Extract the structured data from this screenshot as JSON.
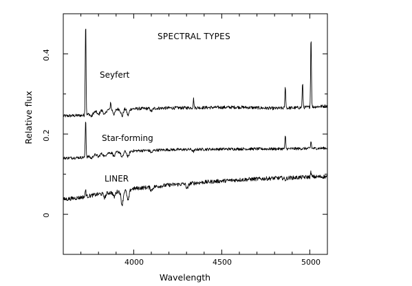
{
  "chart_data": {
    "type": "line",
    "title": "SPECTRAL TYPES",
    "xlabel": "Wavelength",
    "ylabel": "Relative flux",
    "xlim": [
      3600,
      5100
    ],
    "ylim": [
      -0.1,
      0.5
    ],
    "x_ticks": [
      4000,
      4500,
      5000
    ],
    "x_tick_labels": [
      "4000",
      "4500",
      "5000"
    ],
    "y_ticks": [
      0,
      0.2,
      0.4
    ],
    "y_tick_labels": [
      "0",
      "0.2",
      "0.4"
    ],
    "grid": false,
    "legend": "none",
    "line_color": "#000000",
    "series": [
      {
        "name": "Seyfert",
        "continuum": [
          [
            3600,
            0.245
          ],
          [
            3727,
            0.247
          ],
          [
            3800,
            0.258
          ],
          [
            3900,
            0.262
          ],
          [
            4000,
            0.263
          ],
          [
            4200,
            0.265
          ],
          [
            4400,
            0.266
          ],
          [
            4600,
            0.267
          ],
          [
            4800,
            0.264
          ],
          [
            4950,
            0.266
          ],
          [
            5100,
            0.27
          ]
        ],
        "absorptions": [
          [
            3760,
            0.008
          ],
          [
            3800,
            0.01
          ],
          [
            3835,
            0.012
          ],
          [
            3889,
            0.012
          ],
          [
            3934,
            0.018
          ],
          [
            3968,
            0.016
          ],
          [
            4101,
            0.007
          ]
        ],
        "emissions": [
          [
            3727,
            0.24
          ],
          [
            3869,
            0.02
          ],
          [
            4340,
            0.022
          ],
          [
            4861,
            0.055
          ],
          [
            4959,
            0.06
          ],
          [
            5007,
            0.18
          ]
        ],
        "noise": 0.004
      },
      {
        "name": "Star-forming",
        "continuum": [
          [
            3600,
            0.14
          ],
          [
            3727,
            0.142
          ],
          [
            3800,
            0.15
          ],
          [
            3900,
            0.155
          ],
          [
            4000,
            0.158
          ],
          [
            4200,
            0.161
          ],
          [
            4400,
            0.162
          ],
          [
            4600,
            0.163
          ],
          [
            4800,
            0.163
          ],
          [
            5000,
            0.164
          ],
          [
            5100,
            0.165
          ]
        ],
        "absorptions": [
          [
            3760,
            0.006
          ],
          [
            3800,
            0.007
          ],
          [
            3835,
            0.008
          ],
          [
            3889,
            0.01
          ],
          [
            3934,
            0.015
          ],
          [
            3968,
            0.014
          ],
          [
            4101,
            0.006
          ],
          [
            4340,
            0.005
          ]
        ],
        "emissions": [
          [
            3727,
            0.097
          ],
          [
            4861,
            0.032
          ],
          [
            5007,
            0.018
          ]
        ],
        "noise": 0.0035
      },
      {
        "name": "LINER",
        "continuum": [
          [
            3600,
            0.037
          ],
          [
            3700,
            0.042
          ],
          [
            3800,
            0.05
          ],
          [
            3900,
            0.056
          ],
          [
            4000,
            0.064
          ],
          [
            4100,
            0.068
          ],
          [
            4200,
            0.073
          ],
          [
            4300,
            0.076
          ],
          [
            4400,
            0.08
          ],
          [
            4500,
            0.083
          ],
          [
            4600,
            0.086
          ],
          [
            4700,
            0.088
          ],
          [
            4800,
            0.09
          ],
          [
            4900,
            0.091
          ],
          [
            5000,
            0.093
          ],
          [
            5100,
            0.094
          ]
        ],
        "absorptions": [
          [
            3934,
            0.035
          ],
          [
            3968,
            0.028
          ],
          [
            3835,
            0.01
          ],
          [
            3889,
            0.012
          ],
          [
            4101,
            0.008
          ],
          [
            4304,
            0.012
          ],
          [
            4861,
            0.004
          ]
        ],
        "emissions": [
          [
            3727,
            0.018
          ],
          [
            5007,
            0.012
          ]
        ],
        "noise": 0.005
      }
    ]
  }
}
